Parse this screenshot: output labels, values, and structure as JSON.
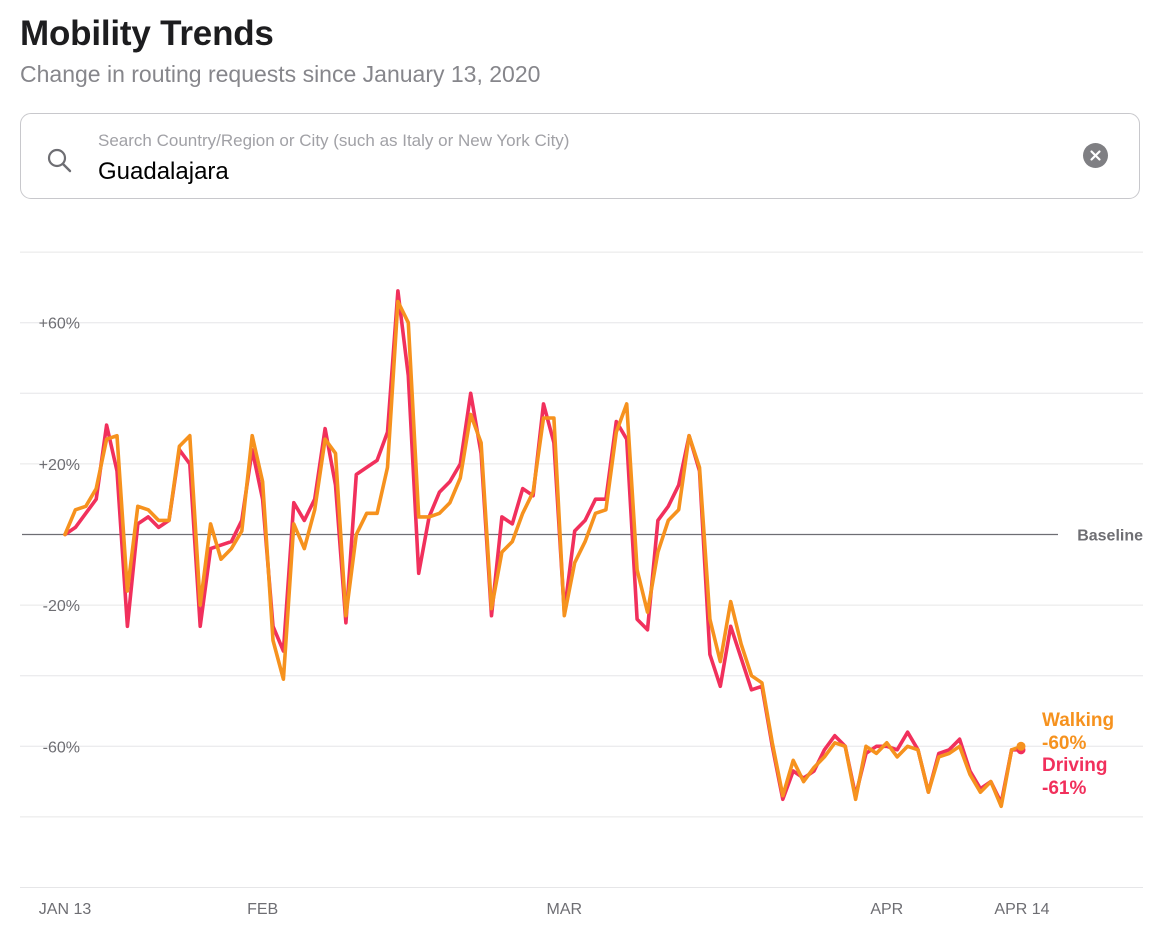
{
  "header": {
    "title": "Mobility Trends",
    "subtitle": "Change in routing requests since January 13, 2020"
  },
  "search": {
    "placeholder": "Search Country/Region or City (such as Italy or New York City)",
    "value": "Guadalajara",
    "search_icon": "search-icon",
    "clear_icon": "clear-icon"
  },
  "colors": {
    "driving": "#f1305c",
    "walking": "#f6921e",
    "grid": "#e6e6e8",
    "baseline": "#6e6e73"
  },
  "chart_data": {
    "type": "line",
    "title": "Mobility Trends",
    "subtitle": "Change in routing requests since January 13, 2020",
    "xlabel": "",
    "ylabel": "",
    "ylim": [
      -100,
      80
    ],
    "grid": true,
    "yticks": [
      {
        "value": 60,
        "label": "+60%"
      },
      {
        "value": 20,
        "label": "+20%"
      },
      {
        "value": -20,
        "label": "-20%"
      },
      {
        "value": -60,
        "label": "-60%"
      }
    ],
    "gridlines": [
      80,
      60,
      40,
      20,
      -20,
      -40,
      -60,
      -80,
      -100
    ],
    "xticks": [
      {
        "index": 0,
        "label": "JAN 13"
      },
      {
        "index": 19,
        "label": "FEB"
      },
      {
        "index": 48,
        "label": "MAR"
      },
      {
        "index": 79,
        "label": "APR"
      },
      {
        "index": 92,
        "label": "APR 14"
      }
    ],
    "baseline_label": "Baseline",
    "x_start": "2020-01-13",
    "x_end": "2020-04-14",
    "series": [
      {
        "name": "Driving",
        "label": "Driving",
        "value_label": "-61%",
        "color": "#f1305c",
        "values": [
          0,
          2,
          6,
          10,
          31,
          18,
          -26,
          3,
          5,
          2,
          4,
          24,
          20,
          -26,
          -4,
          -3,
          -2,
          4,
          24,
          10,
          -26,
          -33,
          9,
          4,
          10,
          30,
          14,
          -25,
          17,
          19,
          21,
          29,
          69,
          45,
          -11,
          5,
          12,
          15,
          20,
          40,
          23,
          -23,
          5,
          3,
          13,
          11,
          37,
          26,
          -22,
          1,
          4,
          10,
          10,
          32,
          27,
          -24,
          -27,
          4,
          8,
          14,
          28,
          18,
          -34,
          -43,
          -26,
          -35,
          -44,
          -43,
          -60,
          -75,
          -67,
          -69,
          -67,
          -61,
          -57,
          -60,
          -74,
          -62,
          -60,
          -60,
          -61,
          -56,
          -61,
          -73,
          -62,
          -61,
          -58,
          -67,
          -72,
          -70,
          -76,
          -61,
          -61
        ]
      },
      {
        "name": "Walking",
        "label": "Walking",
        "value_label": "-60%",
        "color": "#f6921e",
        "values": [
          0,
          7,
          8,
          13,
          27,
          28,
          -16,
          8,
          7,
          4,
          4,
          25,
          28,
          -20,
          3,
          -7,
          -4,
          1,
          28,
          15,
          -30,
          -41,
          3,
          -4,
          7,
          27,
          23,
          -23,
          0,
          6,
          6,
          19,
          66,
          60,
          5,
          5,
          6,
          9,
          16,
          34,
          26,
          -21,
          -5,
          -2,
          6,
          12,
          33,
          33,
          -23,
          -8,
          -2,
          6,
          7,
          29,
          37,
          -10,
          -22,
          -5,
          4,
          7,
          28,
          19,
          -24,
          -36,
          -19,
          -31,
          -40,
          -42,
          -59,
          -74,
          -64,
          -70,
          -66,
          -63,
          -59,
          -60,
          -75,
          -60,
          -62,
          -59,
          -63,
          -60,
          -61,
          -73,
          -63,
          -62,
          -60,
          -68,
          -73,
          -70,
          -77,
          -61,
          -60
        ]
      }
    ]
  }
}
